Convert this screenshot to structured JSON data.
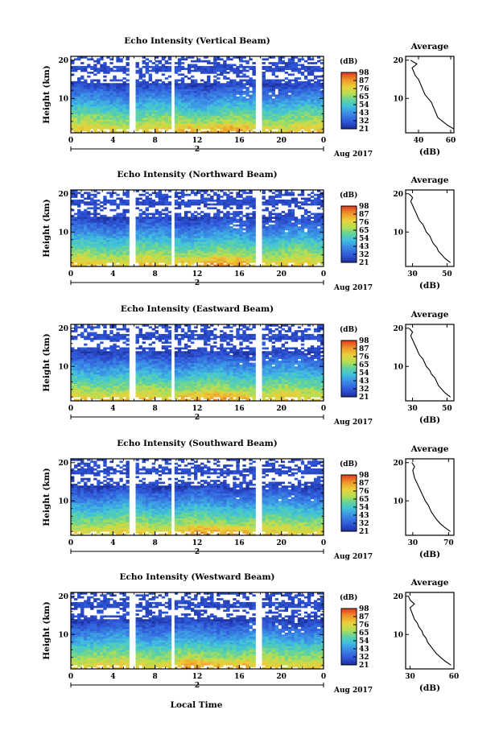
{
  "chart_data": {
    "type": "heatmap",
    "shared": {
      "x_ticks": [
        "0",
        "4",
        "8",
        "12",
        "16",
        "20",
        "0"
      ],
      "xlim": [
        0,
        24
      ],
      "y_ticks": [
        "10",
        "20"
      ],
      "ylim": [
        1,
        21
      ],
      "ylabel": "Height (km)",
      "date_tick": "2",
      "date_label": "Aug 2017",
      "xlabel": "Local Time",
      "colorbar_unit": "(dB)",
      "colorbar_ticks": [
        "21",
        "32",
        "43",
        "54",
        "65",
        "76",
        "87",
        "98"
      ],
      "colorbar_colors": [
        "#1c2aa0",
        "#2f5de0",
        "#3a9be8",
        "#3fd0d2",
        "#7fd96f",
        "#d8e040",
        "#f2a32a",
        "#e03a1f"
      ],
      "avg_title": "Average",
      "avg_xlabel": "(dB)",
      "data_gaps_hours": [
        [
          5.6,
          6.2
        ],
        [
          9.4,
          9.8
        ],
        [
          17.6,
          18.1
        ]
      ],
      "avg_profile_heights_km": [
        2,
        3,
        4,
        5,
        6,
        7,
        8,
        9,
        10,
        11,
        12,
        13,
        14,
        15,
        16,
        17,
        18,
        19,
        20
      ]
    },
    "panels": [
      {
        "title": "Echo Intensity (Vertical Beam)",
        "avg_ticks": [
          "40",
          "60"
        ],
        "avg_xlim": [
          32,
          62
        ],
        "avg_profile_db": [
          62,
          58,
          55,
          52,
          51,
          50,
          49,
          48,
          46,
          44,
          43,
          42,
          41,
          40,
          38,
          37,
          36,
          39,
          35
        ]
      },
      {
        "title": "Echo Intensity (Northward Beam)",
        "avg_ticks": [
          "30",
          "50"
        ],
        "avg_xlim": [
          26,
          54
        ],
        "avg_profile_db": [
          52,
          49,
          47,
          45,
          44,
          42,
          41,
          40,
          38,
          37,
          36,
          34,
          33,
          32,
          31,
          30,
          29,
          30,
          28
        ]
      },
      {
        "title": "Echo Intensity (Eastward Beam)",
        "avg_ticks": [
          "30",
          "50"
        ],
        "avg_xlim": [
          26,
          54
        ],
        "avg_profile_db": [
          52,
          49,
          47,
          45,
          44,
          43,
          41,
          40,
          38,
          37,
          36,
          34,
          33,
          32,
          31,
          30,
          29,
          30,
          28
        ]
      },
      {
        "title": "Echo Intensity (Southward Beam)",
        "avg_ticks": [
          "30",
          "70"
        ],
        "avg_xlim": [
          22,
          76
        ],
        "avg_profile_db": [
          72,
          66,
          61,
          57,
          54,
          51,
          49,
          47,
          44,
          42,
          40,
          38,
          36,
          34,
          32,
          31,
          30,
          32,
          29
        ]
      },
      {
        "title": "Echo Intensity (Westward Beam)",
        "avg_ticks": [
          "30",
          "60"
        ],
        "avg_xlim": [
          27,
          60
        ],
        "avg_profile_db": [
          58,
          54,
          51,
          48,
          46,
          44,
          42,
          41,
          39,
          38,
          36,
          35,
          33,
          32,
          31,
          30,
          33,
          30,
          29
        ]
      }
    ]
  }
}
